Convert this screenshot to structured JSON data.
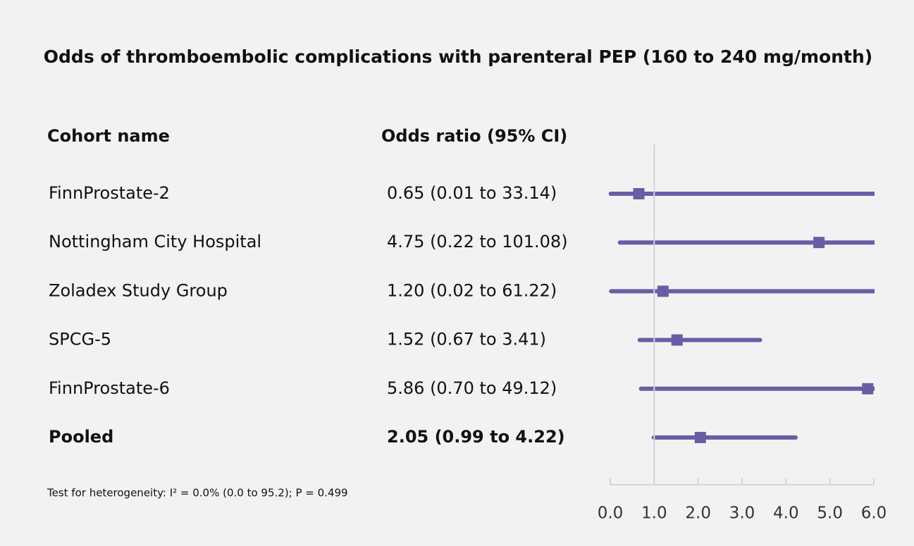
{
  "chart_data": {
    "type": "forest",
    "title": "Odds of thromboembolic complications with parenteral PEP (160 to 240 mg/month)",
    "column_headers": [
      "Cohort name",
      "Odds ratio (95% CI)"
    ],
    "categories": [
      "FinnProstate-2",
      "Nottingham City Hospital",
      "Zoladex Study Group",
      "SPCG-5",
      "FinnProstate-6"
    ],
    "values": [
      0.65,
      4.75,
      1.2,
      1.52,
      5.86
    ],
    "lower": [
      0.01,
      0.22,
      0.02,
      0.67,
      0.7
    ],
    "upper": [
      33.14,
      101.08,
      61.22,
      3.41,
      49.12
    ],
    "value_labels": [
      "0.65 (0.01 to 33.14)",
      "4.75 (0.22 to 101.08)",
      "1.20 (0.02 to 61.22)",
      "1.52 (0.67 to 3.41)",
      "5.86 (0.70 to 49.12)"
    ],
    "pooled": {
      "name": "Pooled",
      "value": 2.05,
      "lower": 0.99,
      "upper": 4.22,
      "label": "2.05 (0.99 to 4.22)"
    },
    "footnote": "Test for heterogeneity: I² = 0.0% (0.0 to 95.2); P = 0.499",
    "color": "#6b5ca5",
    "reference_line": 1,
    "xlim": [
      0,
      6
    ],
    "xticks": [
      {
        "value": 0,
        "label": "0.0"
      },
      {
        "value": 1,
        "label": "1.0"
      },
      {
        "value": 2,
        "label": "2.0"
      },
      {
        "value": 3,
        "label": "3.0"
      },
      {
        "value": 4,
        "label": "4.0"
      },
      {
        "value": 5,
        "label": "5.0"
      },
      {
        "value": 6,
        "label": "6.0"
      }
    ]
  }
}
